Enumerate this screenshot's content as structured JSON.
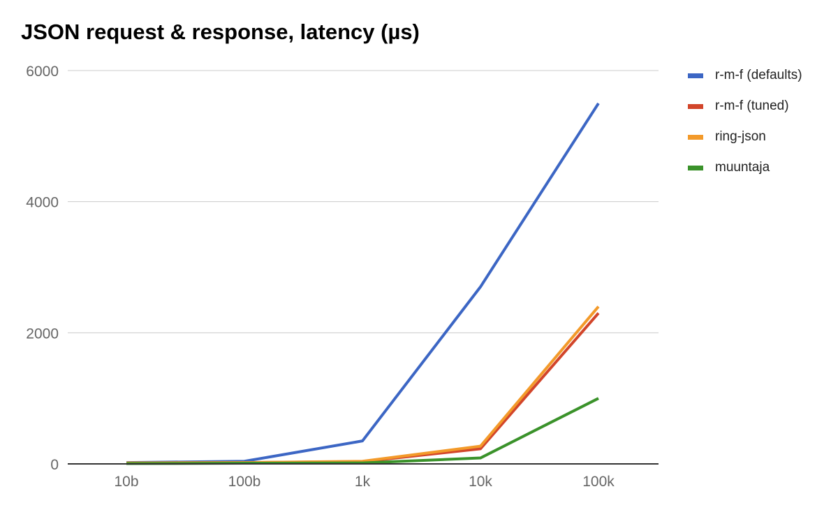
{
  "chart_data": {
    "type": "line",
    "title": "JSON request & response, latency (µs)",
    "xlabel": "",
    "ylabel": "",
    "categories": [
      "10b",
      "100b",
      "1k",
      "10k",
      "100k"
    ],
    "ylim": [
      0,
      6000
    ],
    "yticks": [
      0,
      2000,
      4000,
      6000
    ],
    "grid": true,
    "legend_position": "right",
    "series": [
      {
        "name": "r-m-f (defaults)",
        "color": "#3c66c4",
        "values": [
          20,
          40,
          350,
          2700,
          5500
        ]
      },
      {
        "name": "r-m-f (tuned)",
        "color": "#d2452a",
        "values": [
          15,
          20,
          35,
          230,
          2300
        ]
      },
      {
        "name": "ring-json",
        "color": "#f39a2a",
        "values": [
          15,
          20,
          40,
          270,
          2400
        ]
      },
      {
        "name": "muuntaja",
        "color": "#3a922a",
        "values": [
          5,
          10,
          15,
          90,
          1000
        ]
      }
    ]
  }
}
